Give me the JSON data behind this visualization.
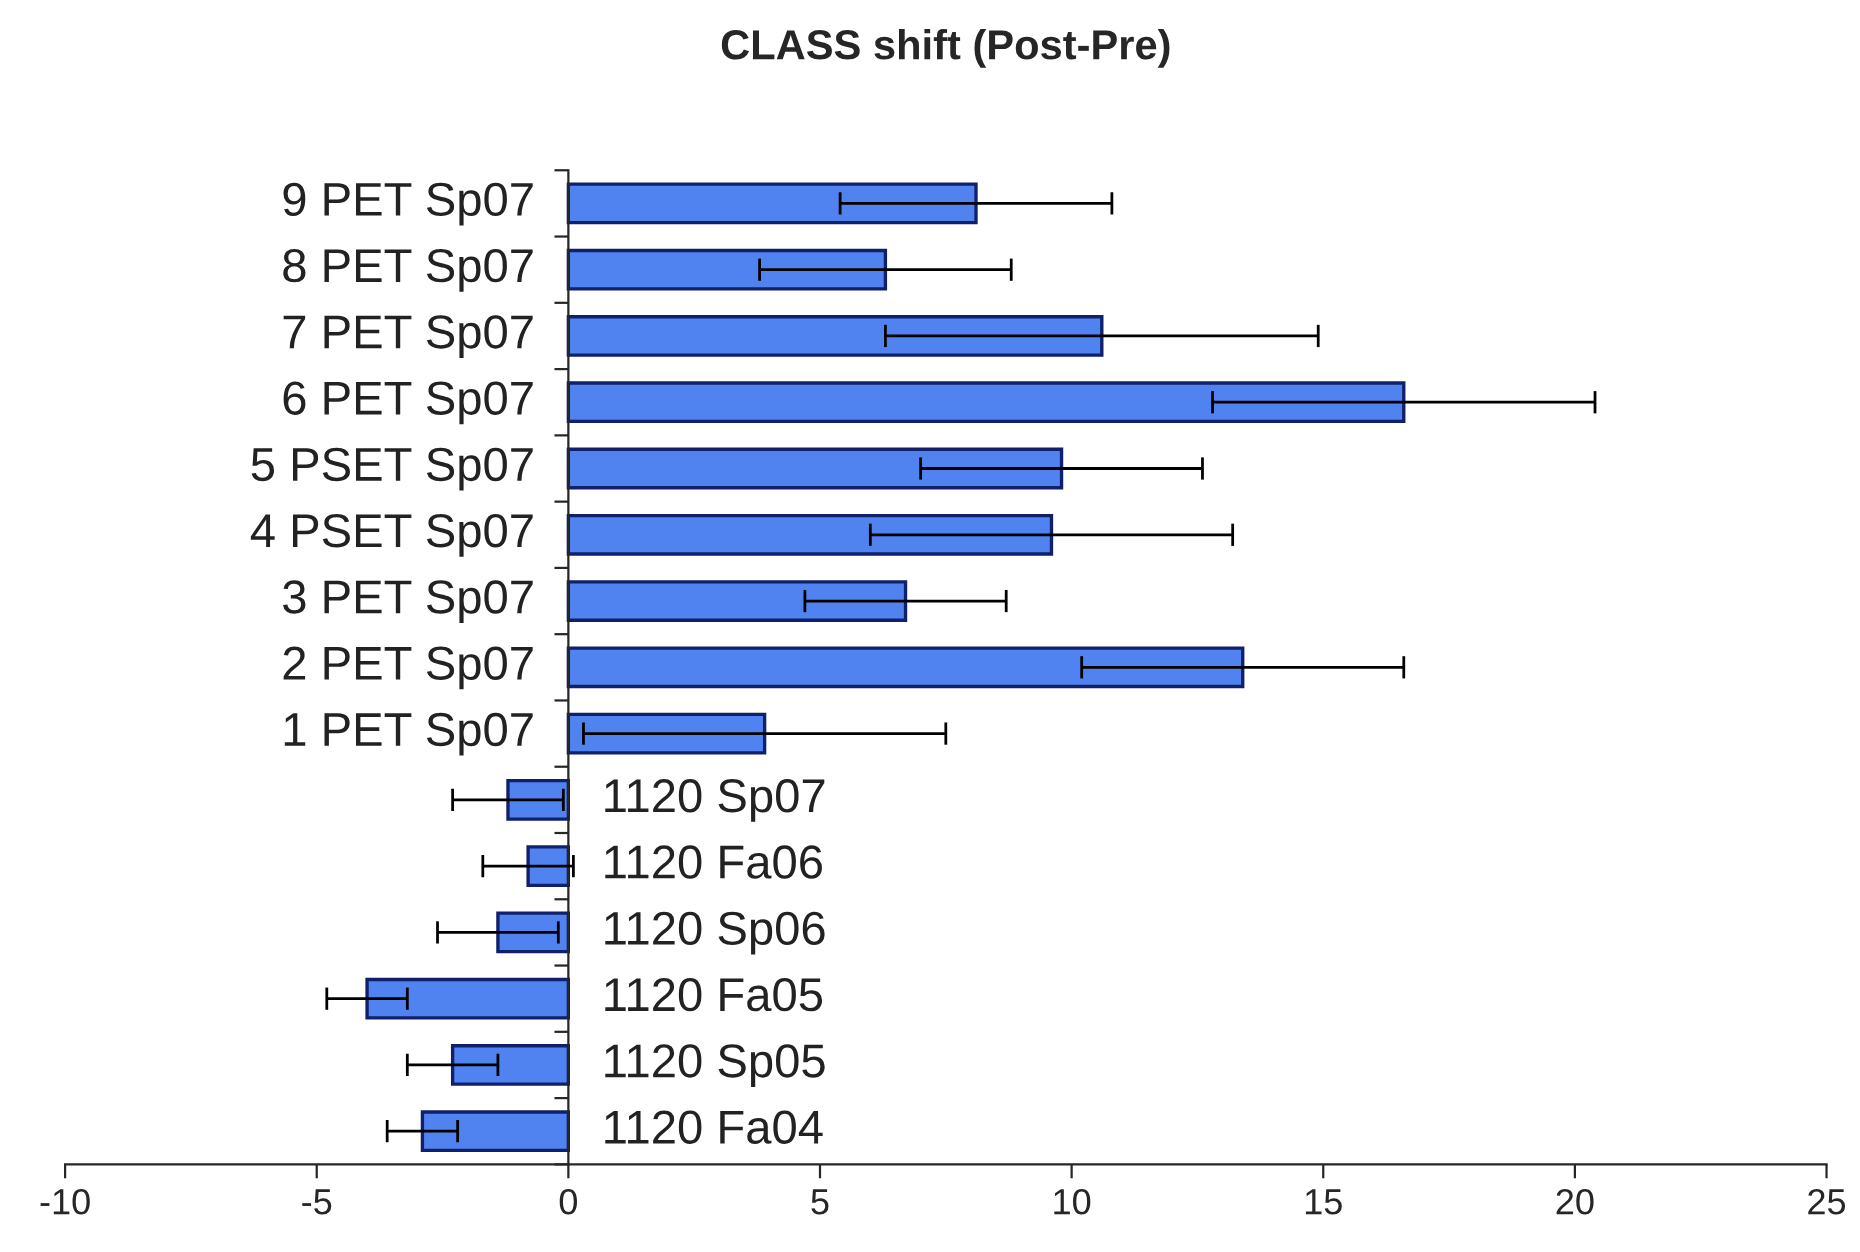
{
  "chart_data": {
    "type": "bar",
    "orientation": "horizontal",
    "title": "CLASS shift (Post-Pre)",
    "categories": [
      "9 PET Sp07",
      "8 PET Sp07",
      "7 PET Sp07",
      "6 PET Sp07",
      "5 PSET Sp07",
      "4 PSET Sp07",
      "3 PET Sp07",
      "2 PET Sp07",
      "1 PET Sp07",
      "1120 Sp07",
      "1120 Fa06",
      "1120 Sp06",
      "1120 Fa05",
      "1120 Sp05",
      "1120 Fa04"
    ],
    "values": [
      8.1,
      6.3,
      10.6,
      16.6,
      9.8,
      9.6,
      6.7,
      13.4,
      3.9,
      -1.2,
      -0.8,
      -1.4,
      -4.0,
      -2.3,
      -2.9
    ],
    "errors": [
      2.7,
      2.5,
      4.3,
      3.8,
      2.8,
      3.6,
      2.0,
      3.2,
      3.6,
      1.1,
      0.9,
      1.2,
      0.8,
      0.9,
      0.7
    ],
    "color": "#5082f0",
    "xlim": [
      -10,
      25
    ],
    "xticks": [
      -10,
      -5,
      0,
      5,
      10,
      15,
      20,
      25
    ],
    "grid": false,
    "legend": false
  }
}
